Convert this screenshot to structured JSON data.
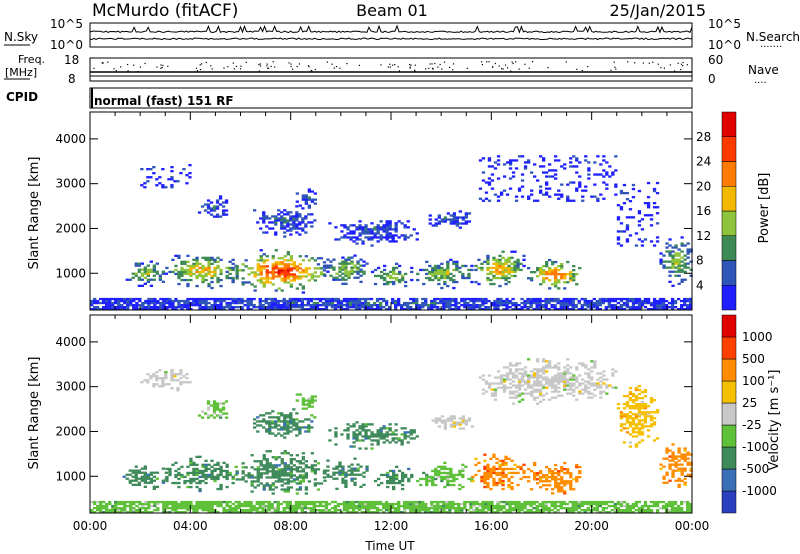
{
  "header": {
    "station": "McMurdo (fitACF)",
    "beam": "Beam 01",
    "date": "25/Jan/2015"
  },
  "status_panels": {
    "left_labels": [
      "N.Sky",
      "Freq.",
      "[MHz]",
      "CPID"
    ],
    "right_labels": [
      "N.Search",
      "Nave"
    ],
    "nsky_ticks": [
      "10^5",
      "10^0"
    ],
    "nsearch_ticks": [
      "10^5",
      "10^0"
    ],
    "freq_ticks": [
      "18",
      "8"
    ],
    "nave_ticks": [
      "60",
      "0"
    ],
    "cpid_text": "normal (fast) 151 RF"
  },
  "chart_data": [
    {
      "type": "heatmap",
      "name": "power",
      "ylabel": "Slant Range [km]",
      "ylim": [
        180,
        4600
      ],
      "yticks": [
        1000,
        2000,
        3000,
        4000
      ],
      "xlim": [
        0,
        24
      ],
      "colorbar": {
        "label": "Power [dB]",
        "ticks": [
          "4",
          "8",
          "12",
          "16",
          "20",
          "24",
          "28"
        ],
        "colors": [
          "#1f1fff",
          "#2f55b8",
          "#3d8a55",
          "#8ec43c",
          "#f2b900",
          "#ff7a00",
          "#ff3a00",
          "#e00000"
        ]
      },
      "clusters": [
        {
          "t0": 0.0,
          "t1": 24.0,
          "r0": 180,
          "r1": 420,
          "level": 1
        },
        {
          "t0": 1.3,
          "t1": 3.0,
          "r0": 700,
          "r1": 1250,
          "level": 3
        },
        {
          "t0": 3.0,
          "t1": 5.8,
          "r0": 650,
          "r1": 1450,
          "level": 4
        },
        {
          "t0": 5.8,
          "t1": 9.3,
          "r0": 550,
          "r1": 1500,
          "level": 6
        },
        {
          "t0": 9.3,
          "t1": 11.0,
          "r0": 700,
          "r1": 1400,
          "level": 3
        },
        {
          "t0": 11.2,
          "t1": 12.8,
          "r0": 650,
          "r1": 1200,
          "level": 3
        },
        {
          "t0": 13.0,
          "t1": 15.2,
          "r0": 650,
          "r1": 1300,
          "level": 3
        },
        {
          "t0": 15.2,
          "t1": 17.3,
          "r0": 650,
          "r1": 1500,
          "level": 4
        },
        {
          "t0": 17.3,
          "t1": 19.6,
          "r0": 600,
          "r1": 1300,
          "level": 5
        },
        {
          "t0": 22.7,
          "t1": 24.0,
          "r0": 700,
          "r1": 1800,
          "level": 3
        },
        {
          "t0": 4.3,
          "t1": 5.5,
          "r0": 2200,
          "r1": 2700,
          "level": 1
        },
        {
          "t0": 6.5,
          "t1": 9.0,
          "r0": 1800,
          "r1": 2500,
          "level": 1
        },
        {
          "t0": 8.2,
          "t1": 9.0,
          "r0": 2400,
          "r1": 2900,
          "level": 1
        },
        {
          "t0": 9.5,
          "t1": 13.0,
          "r0": 1600,
          "r1": 2200,
          "level": 1
        },
        {
          "t0": 13.5,
          "t1": 15.2,
          "r0": 2000,
          "r1": 2400,
          "level": 1
        },
        {
          "t0": 2.0,
          "t1": 4.0,
          "r0": 2900,
          "r1": 3400,
          "level": 0
        },
        {
          "t0": 15.5,
          "t1": 21.0,
          "r0": 2600,
          "r1": 3600,
          "level": 0
        },
        {
          "t0": 21.0,
          "t1": 22.6,
          "r0": 1600,
          "r1": 3000,
          "level": 0
        }
      ]
    },
    {
      "type": "heatmap",
      "name": "velocity",
      "ylabel": "Slant Range [km]",
      "xlabel": "Time UT",
      "ylim": [
        180,
        4600
      ],
      "yticks": [
        1000,
        2000,
        3000,
        4000
      ],
      "xlim": [
        0,
        24
      ],
      "xticklabels": [
        "00:00",
        "04:00",
        "08:00",
        "12:00",
        "16:00",
        "20:00",
        "00:00"
      ],
      "colorbar": {
        "label": "Velocity [m s⁻¹]",
        "ticks": [
          "1000",
          "500",
          "100",
          "25",
          "-25",
          "-100",
          "-500",
          "-1000"
        ],
        "colors": [
          "#2a3fbf",
          "#3b6fb8",
          "#3f8a5a",
          "#5fc03a",
          "#c8c8c8",
          "#f5c000",
          "#ff8c00",
          "#ff4000",
          "#e00000"
        ]
      },
      "clusters": [
        {
          "t0": 0.0,
          "t1": 24.0,
          "r0": 180,
          "r1": 420,
          "level": 3
        },
        {
          "t0": 1.3,
          "t1": 3.0,
          "r0": 700,
          "r1": 1250,
          "level": 2
        },
        {
          "t0": 3.0,
          "t1": 5.8,
          "r0": 650,
          "r1": 1450,
          "level": 2
        },
        {
          "t0": 5.8,
          "t1": 9.3,
          "r0": 550,
          "r1": 1550,
          "level": 2
        },
        {
          "t0": 9.3,
          "t1": 11.0,
          "r0": 700,
          "r1": 1400,
          "level": 2
        },
        {
          "t0": 11.2,
          "t1": 12.8,
          "r0": 650,
          "r1": 1200,
          "level": 2
        },
        {
          "t0": 13.0,
          "t1": 15.2,
          "r0": 650,
          "r1": 1300,
          "level": 3
        },
        {
          "t0": 15.2,
          "t1": 17.3,
          "r0": 650,
          "r1": 1500,
          "level": 6
        },
        {
          "t0": 17.3,
          "t1": 19.6,
          "r0": 600,
          "r1": 1300,
          "level": 6
        },
        {
          "t0": 22.7,
          "t1": 24.0,
          "r0": 700,
          "r1": 1800,
          "level": 6
        },
        {
          "t0": 4.3,
          "t1": 5.5,
          "r0": 2200,
          "r1": 2700,
          "level": 3
        },
        {
          "t0": 6.5,
          "t1": 9.0,
          "r0": 1800,
          "r1": 2500,
          "level": 2
        },
        {
          "t0": 8.2,
          "t1": 9.0,
          "r0": 2400,
          "r1": 2900,
          "level": 3
        },
        {
          "t0": 9.5,
          "t1": 13.0,
          "r0": 1600,
          "r1": 2200,
          "level": 2
        },
        {
          "t0": 13.5,
          "t1": 15.2,
          "r0": 2000,
          "r1": 2400,
          "level": 4
        },
        {
          "t0": 2.0,
          "t1": 4.0,
          "r0": 2900,
          "r1": 3400,
          "level": 4
        },
        {
          "t0": 15.5,
          "t1": 21.0,
          "r0": 2600,
          "r1": 3600,
          "level": 4
        },
        {
          "t0": 21.0,
          "t1": 22.6,
          "r0": 1600,
          "r1": 3000,
          "level": 5
        }
      ]
    }
  ]
}
